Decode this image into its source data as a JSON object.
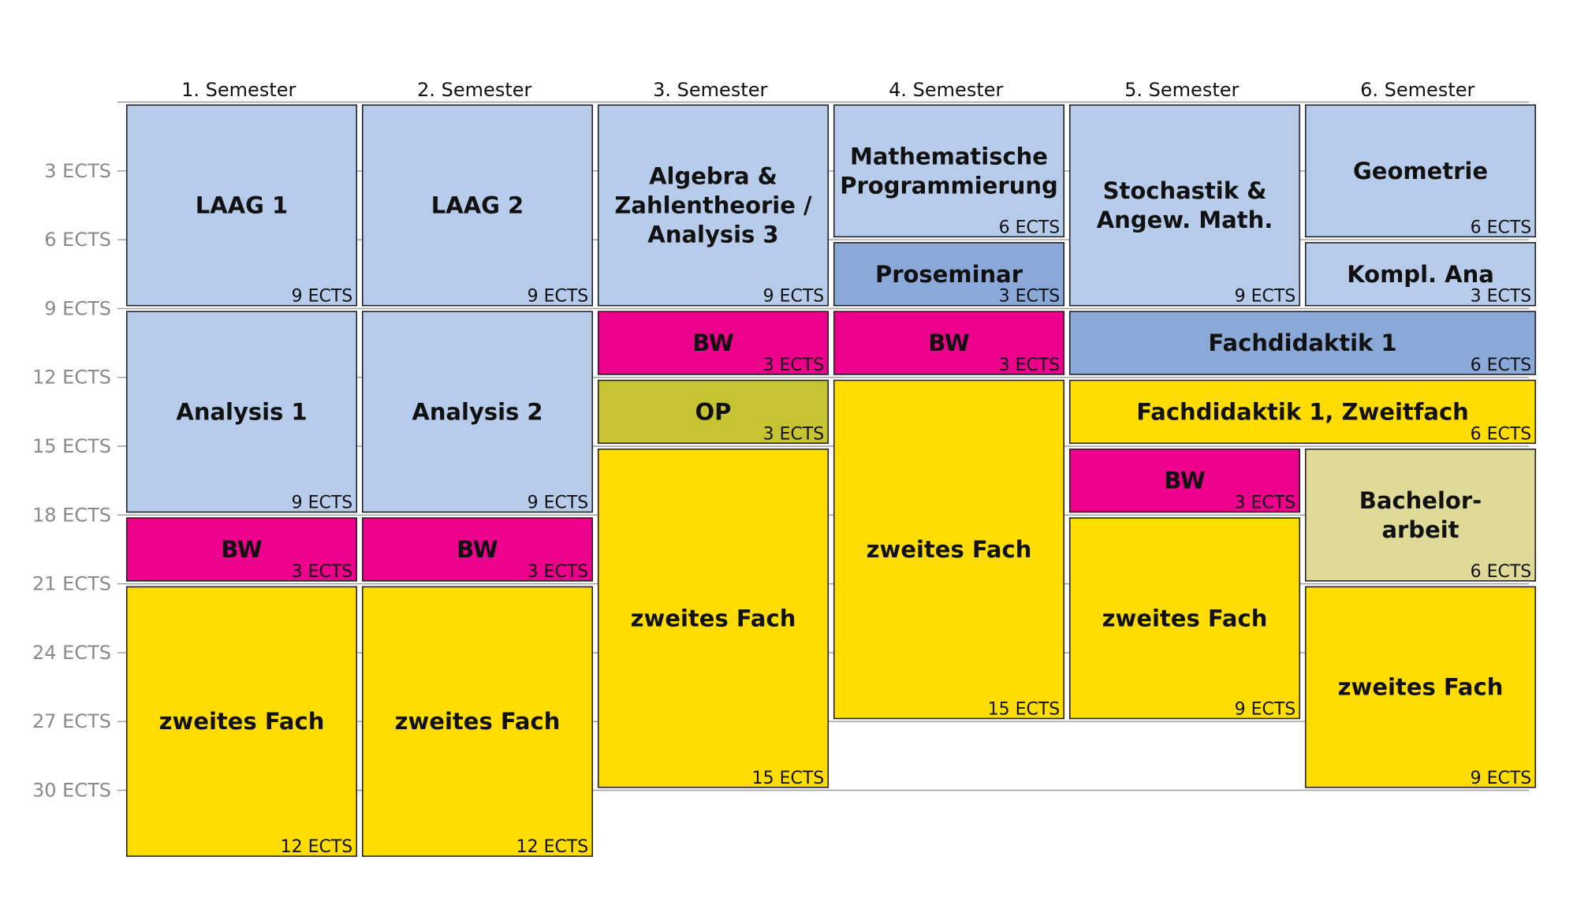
{
  "semesters": [
    "1. Semester",
    "2. Semester",
    "3. Semester",
    "4. Semester",
    "5. Semester",
    "6. Semester"
  ],
  "ects_ticks": [
    "3 ECTS",
    "6 ECTS",
    "9 ECTS",
    "12 ECTS",
    "15 ECTS",
    "18 ECTS",
    "21 ECTS",
    "24 ECTS",
    "27 ECTS",
    "30 ECTS"
  ],
  "category_colors": {
    "core": "#b7ccea",
    "seminar": "#8aa9d8",
    "bw": "#ec008c",
    "op": "#c7c431",
    "second_subject": "#ffdd00",
    "thesis": "#dfda98"
  },
  "modules": [
    {
      "semester": 1,
      "span": 1,
      "start_ects": 0,
      "ects": 9,
      "title": [
        "LAAG 1"
      ],
      "credits": "9 ECTS",
      "category": "core"
    },
    {
      "semester": 1,
      "span": 1,
      "start_ects": 9,
      "ects": 9,
      "title": [
        "Analysis 1"
      ],
      "credits": "9 ECTS",
      "category": "core"
    },
    {
      "semester": 1,
      "span": 1,
      "start_ects": 18,
      "ects": 3,
      "title": [
        "BW"
      ],
      "credits": "3 ECTS",
      "category": "bw"
    },
    {
      "semester": 1,
      "span": 1,
      "start_ects": 21,
      "ects": 12,
      "title": [
        "zweites Fach"
      ],
      "credits": "12 ECTS",
      "category": "second_subject"
    },
    {
      "semester": 2,
      "span": 1,
      "start_ects": 0,
      "ects": 9,
      "title": [
        "LAAG 2"
      ],
      "credits": "9 ECTS",
      "category": "core"
    },
    {
      "semester": 2,
      "span": 1,
      "start_ects": 9,
      "ects": 9,
      "title": [
        "Analysis 2"
      ],
      "credits": "9 ECTS",
      "category": "core"
    },
    {
      "semester": 2,
      "span": 1,
      "start_ects": 18,
      "ects": 3,
      "title": [
        "BW"
      ],
      "credits": "3 ECTS",
      "category": "bw"
    },
    {
      "semester": 2,
      "span": 1,
      "start_ects": 21,
      "ects": 12,
      "title": [
        "zweites Fach"
      ],
      "credits": "12 ECTS",
      "category": "second_subject"
    },
    {
      "semester": 3,
      "span": 1,
      "start_ects": 0,
      "ects": 9,
      "title": [
        "Algebra &",
        "Zahlentheorie /",
        "Analysis 3"
      ],
      "credits": "9 ECTS",
      "category": "core"
    },
    {
      "semester": 3,
      "span": 1,
      "start_ects": 9,
      "ects": 3,
      "title": [
        "BW"
      ],
      "credits": "3 ECTS",
      "category": "bw"
    },
    {
      "semester": 3,
      "span": 1,
      "start_ects": 12,
      "ects": 3,
      "title": [
        "OP"
      ],
      "credits": "3 ECTS",
      "category": "op"
    },
    {
      "semester": 3,
      "span": 1,
      "start_ects": 15,
      "ects": 15,
      "title": [
        "zweites Fach"
      ],
      "credits": "15 ECTS",
      "category": "second_subject"
    },
    {
      "semester": 4,
      "span": 1,
      "start_ects": 0,
      "ects": 6,
      "title": [
        "Mathematische",
        "Programmierung"
      ],
      "credits": "6 ECTS",
      "category": "core"
    },
    {
      "semester": 4,
      "span": 1,
      "start_ects": 6,
      "ects": 3,
      "title": [
        "Proseminar"
      ],
      "credits": "3 ECTS",
      "category": "seminar"
    },
    {
      "semester": 4,
      "span": 1,
      "start_ects": 9,
      "ects": 3,
      "title": [
        "BW"
      ],
      "credits": "3 ECTS",
      "category": "bw"
    },
    {
      "semester": 4,
      "span": 1,
      "start_ects": 12,
      "ects": 15,
      "title": [
        "zweites Fach"
      ],
      "credits": "15 ECTS",
      "category": "second_subject"
    },
    {
      "semester": 5,
      "span": 1,
      "start_ects": 0,
      "ects": 9,
      "title": [
        "Stochastik &",
        "Angew. Math."
      ],
      "credits": "9 ECTS",
      "category": "core"
    },
    {
      "semester": 5,
      "span": 2,
      "start_ects": 9,
      "ects": 3,
      "title": [
        "Fachdidaktik 1"
      ],
      "credits": "6 ECTS",
      "category": "seminar"
    },
    {
      "semester": 5,
      "span": 2,
      "start_ects": 12,
      "ects": 3,
      "title": [
        "Fachdidaktik 1, Zweitfach"
      ],
      "credits": "6 ECTS",
      "category": "second_subject"
    },
    {
      "semester": 5,
      "span": 1,
      "start_ects": 15,
      "ects": 3,
      "title": [
        "BW"
      ],
      "credits": "3 ECTS",
      "category": "bw"
    },
    {
      "semester": 5,
      "span": 1,
      "start_ects": 18,
      "ects": 9,
      "title": [
        "zweites Fach"
      ],
      "credits": "9 ECTS",
      "category": "second_subject"
    },
    {
      "semester": 6,
      "span": 1,
      "start_ects": 0,
      "ects": 6,
      "title": [
        "Geometrie"
      ],
      "credits": "6 ECTS",
      "category": "core"
    },
    {
      "semester": 6,
      "span": 1,
      "start_ects": 6,
      "ects": 3,
      "title": [
        "Kompl. Ana"
      ],
      "credits": "3 ECTS",
      "category": "core"
    },
    {
      "semester": 6,
      "span": 1,
      "start_ects": 15,
      "ects": 6,
      "title": [
        "Bachelor-",
        "arbeit"
      ],
      "credits": "6 ECTS",
      "category": "thesis"
    },
    {
      "semester": 6,
      "span": 1,
      "start_ects": 21,
      "ects": 9,
      "title": [
        "zweites Fach"
      ],
      "credits": "9 ECTS",
      "category": "second_subject"
    }
  ]
}
